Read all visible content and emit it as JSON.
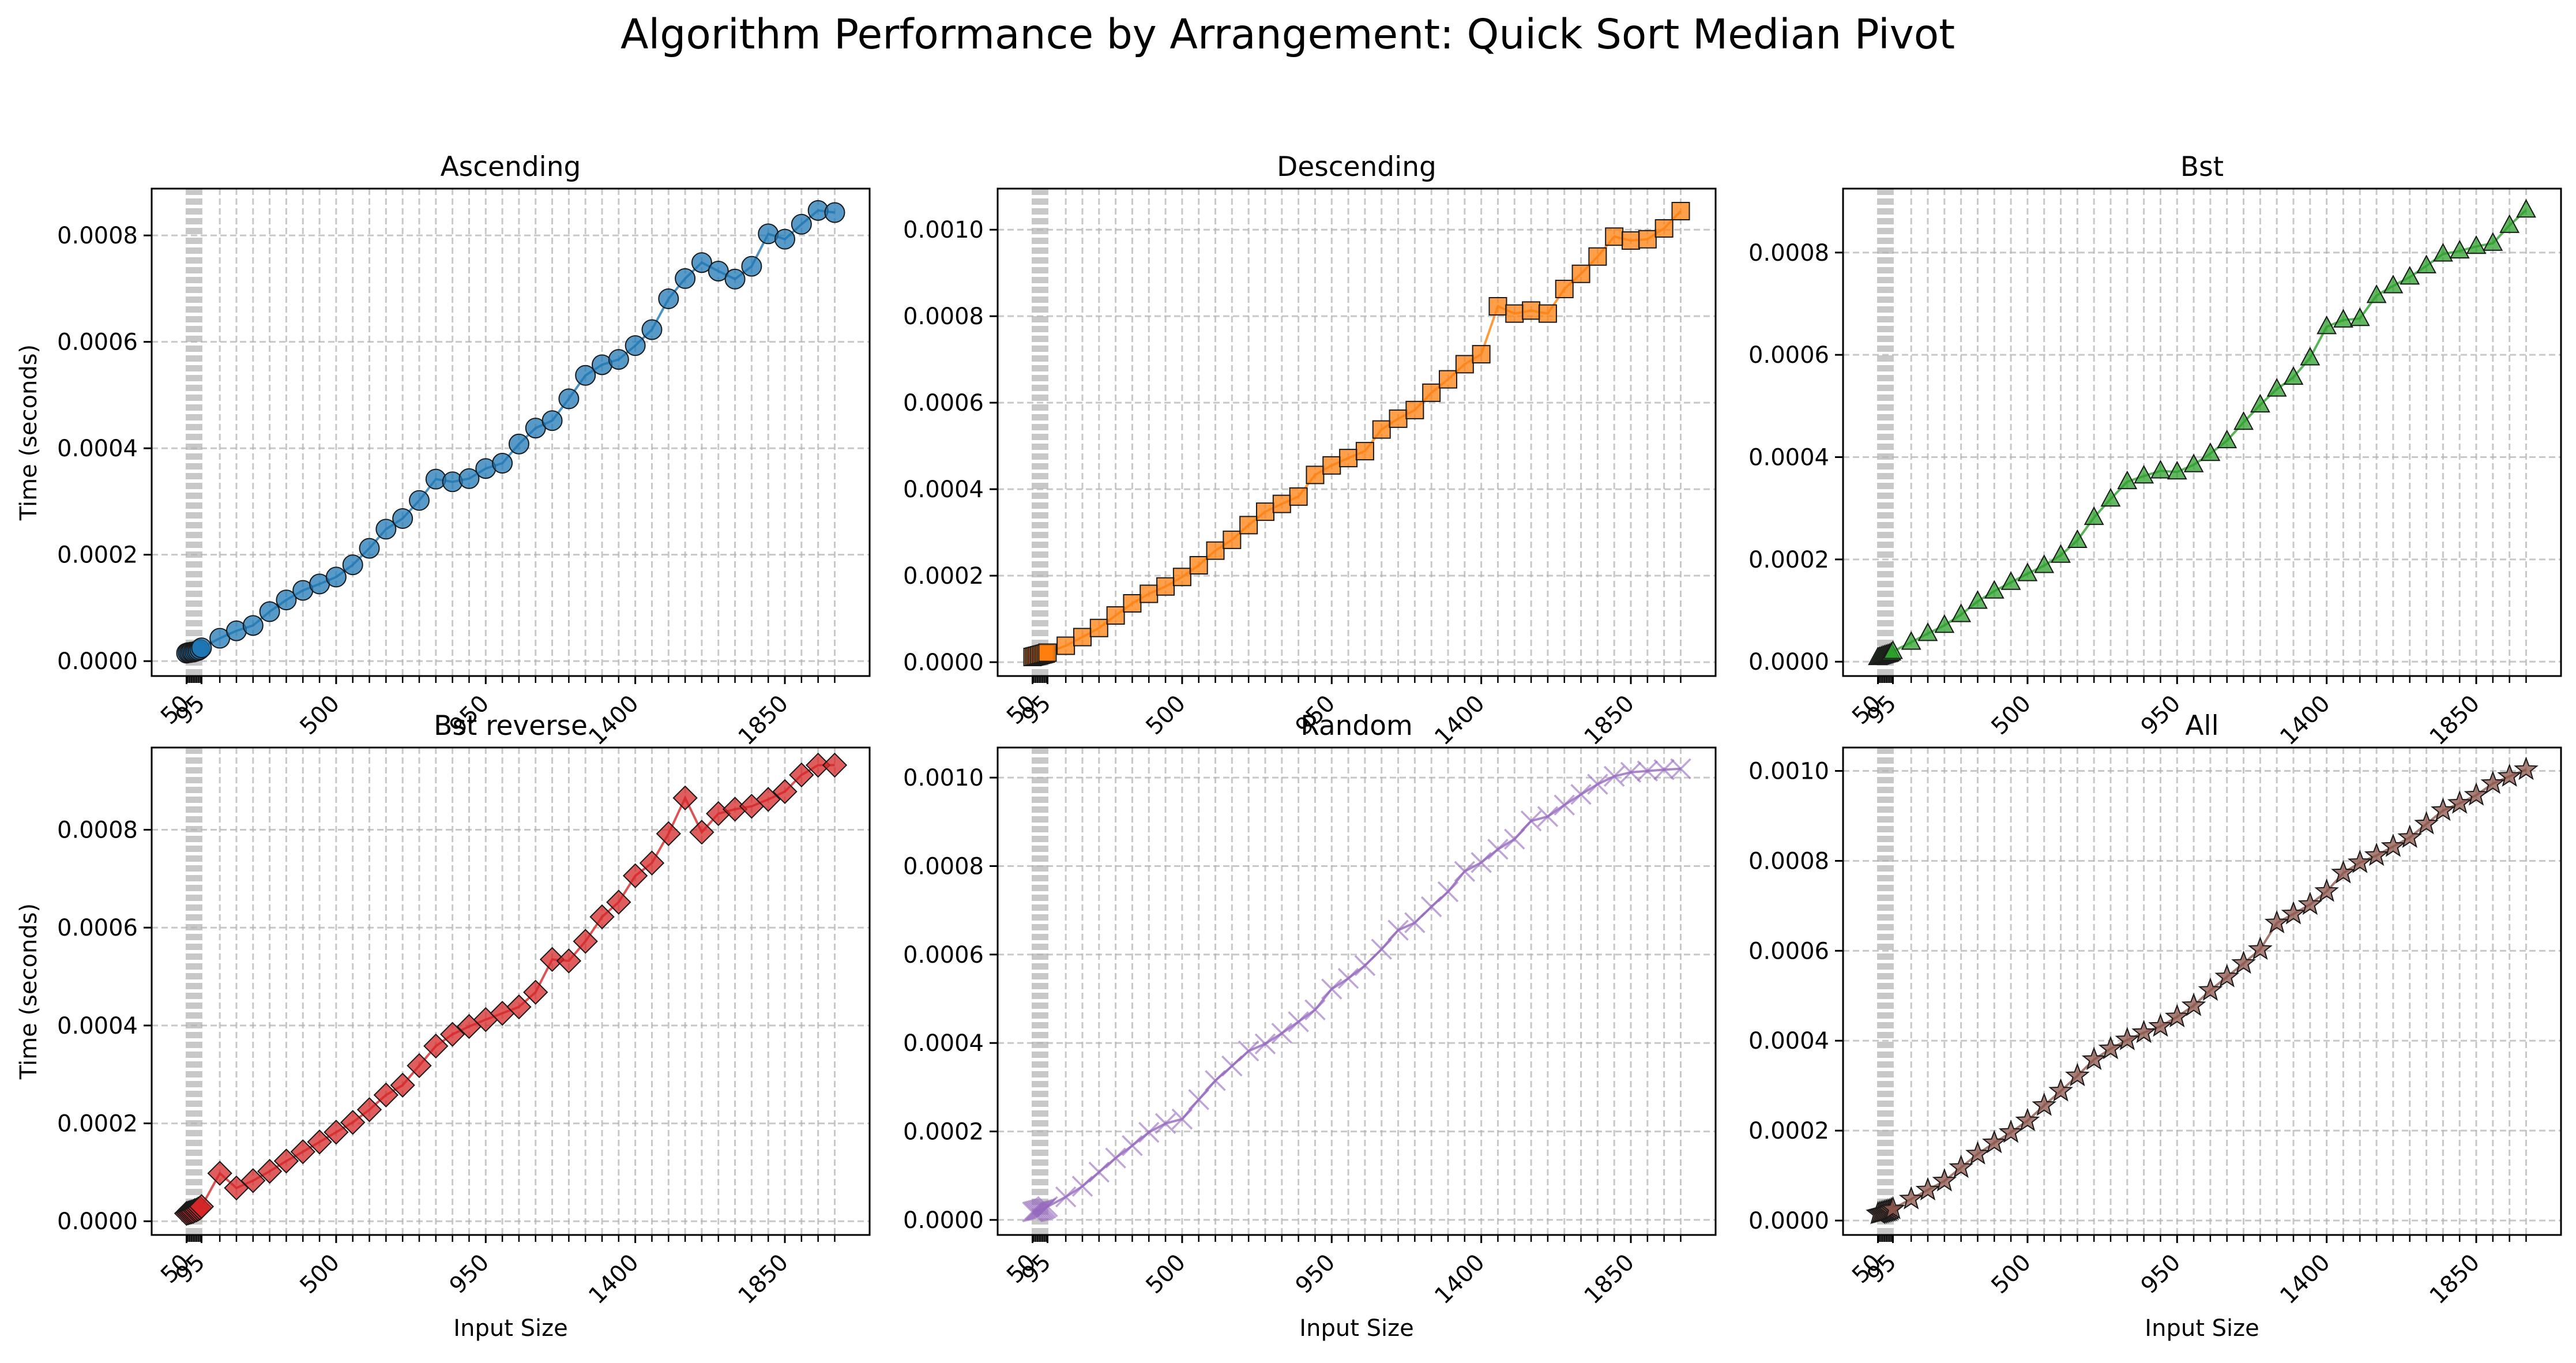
{
  "figure": {
    "title": "Algorithm Performance by Arrangement: Quick Sort Median Pivot"
  },
  "chart_data": [
    {
      "type": "line",
      "title": "Ascending",
      "color": "#1f77b4",
      "marker": "circle",
      "xlabel": "",
      "ylabel": "Time (seconds)",
      "xlim": [
        -55,
        2105
      ],
      "ylim": [
        -2.8e-05,
        0.000888
      ],
      "xticks": [
        "50",
        "95",
        "500",
        "950",
        "1400",
        "1850"
      ],
      "yticks": [
        "0.0000",
        "0.0002",
        "0.0004",
        "0.0006",
        "0.0008"
      ],
      "series": [
        {
          "x": [
            50,
            55,
            60,
            65,
            70,
            75,
            80,
            85,
            90,
            95,
            150,
            200,
            250,
            300,
            350,
            400,
            450,
            500,
            550,
            600,
            650,
            700,
            750,
            800,
            850,
            900,
            950,
            1000,
            1050,
            1100,
            1150,
            1200,
            1250,
            1300,
            1350,
            1400,
            1450,
            1500,
            1550,
            1600,
            1650,
            1700,
            1750,
            1800,
            1850,
            1900,
            1950,
            2000
          ],
          "y": [
            1.5e-05,
            1.6e-05,
            1.6e-05,
            1.7e-05,
            1.7e-05,
            1.8e-05,
            1.9e-05,
            2e-05,
            2.2e-05,
            2.5e-05,
            4.3e-05,
            5.7e-05,
            6.7e-05,
            9.3e-05,
            0.000115,
            0.000133,
            0.000145,
            0.000158,
            0.000181,
            0.000212,
            0.000248,
            0.000268,
            0.000302,
            0.000342,
            0.000337,
            0.000343,
            0.000362,
            0.000372,
            0.000408,
            0.000438,
            0.000452,
            0.000493,
            0.000537,
            0.000557,
            0.000567,
            0.000593,
            0.000623,
            0.000681,
            0.000719,
            0.000749,
            0.000733,
            0.000718,
            0.000742,
            0.000803,
            0.000793,
            0.000821,
            0.000847,
            0.000843
          ]
        }
      ]
    },
    {
      "type": "line",
      "title": "Descending",
      "color": "#ff7f0e",
      "marker": "square",
      "xlabel": "",
      "ylabel": "",
      "xlim": [
        -55,
        2105
      ],
      "ylim": [
        -3.2e-05,
        0.001095
      ],
      "xticks": [
        "50",
        "95",
        "500",
        "950",
        "1400",
        "1850"
      ],
      "yticks": [
        "0.0000",
        "0.0002",
        "0.0004",
        "0.0006",
        "0.0008",
        "0.0010"
      ],
      "series": [
        {
          "x": [
            50,
            55,
            60,
            65,
            70,
            75,
            80,
            85,
            90,
            95,
            150,
            200,
            250,
            300,
            350,
            400,
            450,
            500,
            550,
            600,
            650,
            700,
            750,
            800,
            850,
            900,
            950,
            1000,
            1050,
            1100,
            1150,
            1200,
            1250,
            1300,
            1350,
            1400,
            1450,
            1500,
            1550,
            1600,
            1650,
            1700,
            1750,
            1800,
            1850,
            1900,
            1950,
            2000
          ],
          "y": [
            1.2e-05,
            1.3e-05,
            1.4e-05,
            1.5e-05,
            1.6e-05,
            1.7e-05,
            1.8e-05,
            1.9e-05,
            2e-05,
            2.2e-05,
            3.8e-05,
            5.8e-05,
            7.9e-05,
            0.000108,
            0.000136,
            0.000158,
            0.000175,
            0.000197,
            0.000224,
            0.000258,
            0.000283,
            0.000317,
            0.000348,
            0.000366,
            0.000383,
            0.000433,
            0.000455,
            0.000472,
            0.000488,
            0.000538,
            0.000563,
            0.000583,
            0.000623,
            0.000654,
            0.000689,
            0.000712,
            0.000823,
            0.000806,
            0.000813,
            0.000806,
            0.000863,
            0.000898,
            0.000938,
            0.000984,
            0.000975,
            0.000978,
            0.001003,
            0.001043
          ]
        }
      ]
    },
    {
      "type": "line",
      "title": "Bst",
      "color": "#2ca02c",
      "marker": "triangle",
      "xlabel": "",
      "ylabel": "",
      "xlim": [
        -55,
        2105
      ],
      "ylim": [
        -2.8e-05,
        0.000925
      ],
      "xticks": [
        "50",
        "95",
        "500",
        "950",
        "1400",
        "1850"
      ],
      "yticks": [
        "0.0000",
        "0.0002",
        "0.0004",
        "0.0006",
        "0.0008"
      ],
      "series": [
        {
          "x": [
            50,
            55,
            60,
            65,
            70,
            75,
            80,
            85,
            90,
            95,
            150,
            200,
            250,
            300,
            350,
            400,
            450,
            500,
            550,
            600,
            650,
            700,
            750,
            800,
            850,
            900,
            950,
            1000,
            1050,
            1100,
            1150,
            1200,
            1250,
            1300,
            1350,
            1400,
            1450,
            1500,
            1550,
            1600,
            1650,
            1700,
            1750,
            1800,
            1850,
            1900,
            1950,
            2000
          ],
          "y": [
            8e-06,
            9e-06,
            1e-05,
            1.1e-05,
            1.2e-05,
            1.3e-05,
            1.4e-05,
            1.5e-05,
            1.7e-05,
            2e-05,
            3.8e-05,
            5.5e-05,
            7.1e-05,
            9.2e-05,
            0.000118,
            0.000138,
            0.000155,
            0.000172,
            0.000188,
            0.000208,
            0.000237,
            0.000282,
            0.000318,
            0.000352,
            0.000363,
            0.000373,
            0.000371,
            0.000385,
            0.000407,
            0.000432,
            0.000468,
            0.000502,
            0.000533,
            0.000556,
            0.000594,
            0.000655,
            0.000668,
            0.000671,
            0.000716,
            0.000735,
            0.000752,
            0.000774,
            0.000797,
            0.000803,
            0.000812,
            0.000818,
            0.000853,
            0.000883
          ]
        }
      ]
    },
    {
      "type": "line",
      "title": "Bst reverse",
      "color": "#d62728",
      "marker": "diamond",
      "xlabel": "Input Size",
      "ylabel": "Time (seconds)",
      "xlim": [
        -55,
        2105
      ],
      "ylim": [
        -2.8e-05,
        0.000968
      ],
      "xticks": [
        "50",
        "95",
        "500",
        "950",
        "1400",
        "1850"
      ],
      "yticks": [
        "0.0000",
        "0.0002",
        "0.0004",
        "0.0006",
        "0.0008"
      ],
      "series": [
        {
          "x": [
            50,
            55,
            60,
            65,
            70,
            75,
            80,
            85,
            90,
            95,
            150,
            200,
            250,
            300,
            350,
            400,
            450,
            500,
            550,
            600,
            650,
            700,
            750,
            800,
            850,
            900,
            950,
            1000,
            1050,
            1100,
            1150,
            1200,
            1250,
            1300,
            1350,
            1400,
            1450,
            1500,
            1550,
            1600,
            1650,
            1700,
            1750,
            1800,
            1850,
            1900,
            1950,
            2000
          ],
          "y": [
            1.6e-05,
            1.7e-05,
            1.8e-05,
            1.9e-05,
            2e-05,
            2.2e-05,
            2.3e-05,
            2.5e-05,
            2.7e-05,
            3e-05,
            9.8e-05,
            6.8e-05,
            8.3e-05,
            0.000102,
            0.000123,
            0.000142,
            0.000162,
            0.000182,
            0.000202,
            0.000228,
            0.000258,
            0.000278,
            0.000318,
            0.000358,
            0.000382,
            0.000398,
            0.000412,
            0.000425,
            0.000438,
            0.000468,
            0.000535,
            0.000532,
            0.000572,
            0.000622,
            0.000652,
            0.000706,
            0.000732,
            0.000792,
            0.000865,
            0.000795,
            0.000833,
            0.000842,
            0.000848,
            0.000862,
            0.000878,
            0.000912,
            0.000932,
            0.000932
          ]
        }
      ]
    },
    {
      "type": "line",
      "title": "Random",
      "color": "#9467bd",
      "marker": "x",
      "xlabel": "Input Size",
      "ylabel": "",
      "xlim": [
        -55,
        2105
      ],
      "ylim": [
        -3.4e-05,
        0.001068
      ],
      "xticks": [
        "50",
        "95",
        "500",
        "950",
        "1400",
        "1850"
      ],
      "yticks": [
        "0.0000",
        "0.0002",
        "0.0004",
        "0.0006",
        "0.0008",
        "0.0010"
      ],
      "series": [
        {
          "x": [
            50,
            55,
            60,
            65,
            70,
            75,
            80,
            85,
            90,
            95,
            150,
            200,
            250,
            300,
            350,
            400,
            450,
            500,
            550,
            600,
            650,
            700,
            750,
            800,
            850,
            900,
            950,
            1000,
            1050,
            1100,
            1150,
            1200,
            1250,
            1300,
            1350,
            1400,
            1450,
            1500,
            1550,
            1600,
            1650,
            1700,
            1750,
            1800,
            1850,
            1900,
            1950,
            2000
          ],
          "y": [
            1.8e-05,
            1.9e-05,
            2e-05,
            2.1e-05,
            2.2e-05,
            2.3e-05,
            2.4e-05,
            2.5e-05,
            2.7e-05,
            3e-05,
            5.2e-05,
            7.6e-05,
            0.000108,
            0.00014,
            0.000168,
            0.000198,
            0.000218,
            0.000228,
            0.000272,
            0.000315,
            0.000348,
            0.000382,
            0.000398,
            0.000422,
            0.000448,
            0.000475,
            0.000522,
            0.000546,
            0.000575,
            0.000612,
            0.000655,
            0.000672,
            0.000708,
            0.000742,
            0.000788,
            0.000808,
            0.000838,
            0.000861,
            0.000902,
            0.000912,
            0.000938,
            0.000962,
            0.000985,
            0.001003,
            0.001012,
            0.001015,
            0.001018,
            0.00102
          ]
        }
      ]
    },
    {
      "type": "line",
      "title": "All",
      "color": "#8c564b",
      "marker": "star",
      "xlabel": "Input Size",
      "ylabel": "",
      "xlim": [
        -55,
        2105
      ],
      "ylim": [
        -3.2e-05,
        0.001052
      ],
      "xticks": [
        "50",
        "95",
        "500",
        "950",
        "1400",
        "1850"
      ],
      "yticks": [
        "0.0000",
        "0.0002",
        "0.0004",
        "0.0006",
        "0.0008",
        "0.0010"
      ],
      "series": [
        {
          "x": [
            50,
            55,
            60,
            65,
            70,
            75,
            80,
            85,
            90,
            95,
            150,
            200,
            250,
            300,
            350,
            400,
            450,
            500,
            550,
            600,
            650,
            700,
            750,
            800,
            850,
            900,
            950,
            1000,
            1050,
            1100,
            1150,
            1200,
            1250,
            1300,
            1350,
            1400,
            1450,
            1500,
            1550,
            1600,
            1650,
            1700,
            1750,
            1800,
            1850,
            1900,
            1950,
            2000
          ],
          "y": [
            1.5e-05,
            1.6e-05,
            1.7e-05,
            1.8e-05,
            1.9e-05,
            2e-05,
            2.1e-05,
            2.2e-05,
            2.4e-05,
            2.6e-05,
            4.8e-05,
            6.8e-05,
            8.8e-05,
            0.000118,
            0.000148,
            0.000173,
            0.000196,
            0.000222,
            0.000256,
            0.000288,
            0.000322,
            0.000358,
            0.000382,
            0.000402,
            0.000418,
            0.000432,
            0.000453,
            0.000478,
            0.000512,
            0.000542,
            0.000572,
            0.000603,
            0.000662,
            0.000682,
            0.000703,
            0.000732,
            0.000773,
            0.000796,
            0.000812,
            0.000832,
            0.000852,
            0.000882,
            0.000912,
            0.000928,
            0.000946,
            0.000972,
            0.000988,
            0.001003
          ]
        }
      ]
    }
  ]
}
